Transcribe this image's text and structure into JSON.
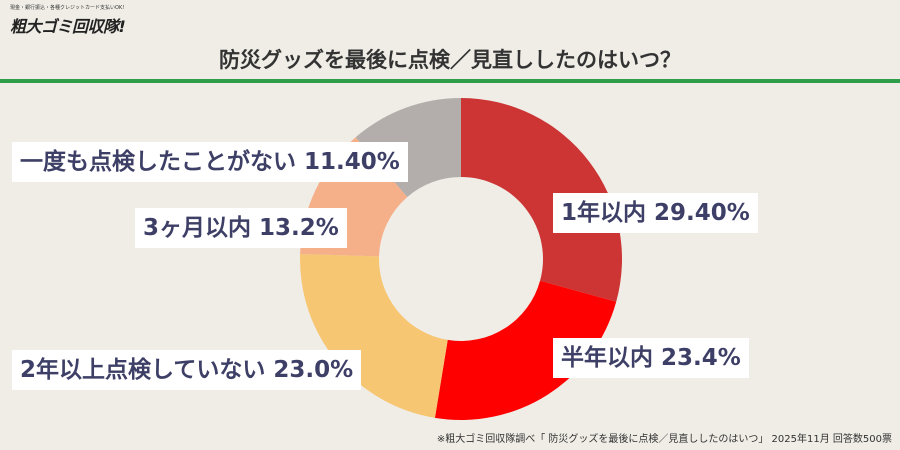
{
  "logo": {
    "tagline": "現金・銀行振込・各種クレジットカード支払いOK!",
    "name": "粗大ゴミ回収隊!"
  },
  "colors": {
    "accent_rule": "#2f9e4a",
    "label_text": "#3d3f66"
  },
  "chart_data": {
    "type": "pie",
    "title": "防災グッズを最後に点検／見直ししたのはいつ？",
    "slices": [
      {
        "label": "1年以内 29.40%",
        "value": 29.4,
        "color": "#cd3535"
      },
      {
        "label": "半年以内 23.4%",
        "value": 23.4,
        "color": "#fe0000"
      },
      {
        "label": "2年以上点検していない 23.0%",
        "value": 23.0,
        "color": "#f7c672"
      },
      {
        "label": "3ヶ月以内 13.2%",
        "value": 13.2,
        "color": "#f5b08a"
      },
      {
        "label": "一度も点検したことがない 11.40%",
        "value": 11.4,
        "color": "#b3aeab"
      }
    ],
    "footnote": "※粗大ゴミ回収隊調べ「 防災グッズを最後に点検／見直ししたのはいつ」 2025年11月 回答数500票"
  }
}
